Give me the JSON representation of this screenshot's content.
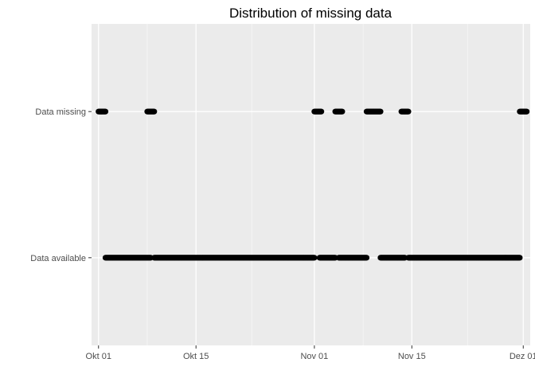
{
  "chart_data": {
    "type": "scatter",
    "title": "Distribution of missing data",
    "xlabel": "",
    "ylabel": "",
    "xlim": [
      "2017-09-30",
      "2017-12-02"
    ],
    "categories": [
      "Data available",
      "Data missing"
    ],
    "x_ticks": [
      {
        "date": "2017-10-01",
        "label": "Okt 01"
      },
      {
        "date": "2017-10-15",
        "label": "Okt 15"
      },
      {
        "date": "2017-11-01",
        "label": "Nov 01"
      },
      {
        "date": "2017-11-15",
        "label": "Nov 15"
      },
      {
        "date": "2017-12-01",
        "label": "Dez 01"
      }
    ],
    "x_minor_ticks": [
      "2017-10-08",
      "2017-10-23",
      "2017-11-08",
      "2017-11-23"
    ],
    "grid": true,
    "legend": "none",
    "series": [
      {
        "category": "Data missing",
        "ranges": [
          [
            "2017-10-01T00:00",
            "2017-10-02T00:00"
          ],
          [
            "2017-10-08T00:00",
            "2017-10-09T00:00"
          ],
          [
            "2017-11-01T00:00",
            "2017-11-02T00:00"
          ],
          [
            "2017-11-04T00:00",
            "2017-11-05T00:00"
          ],
          [
            "2017-11-08T12:00",
            "2017-11-10T12:00"
          ],
          [
            "2017-11-13T12:00",
            "2017-11-14T12:00"
          ],
          [
            "2017-11-30T12:00",
            "2017-12-01T12:00"
          ]
        ]
      },
      {
        "category": "Data available",
        "ranges": [
          [
            "2017-10-02T00:00",
            "2017-10-08T12:00"
          ],
          [
            "2017-10-09T00:00",
            "2017-11-01T00:00"
          ],
          [
            "2017-11-01T18:00",
            "2017-11-04T00:00"
          ],
          [
            "2017-11-04T12:00",
            "2017-11-08T12:00"
          ],
          [
            "2017-11-10T12:00",
            "2017-11-14T00:00"
          ],
          [
            "2017-11-14T12:00",
            "2017-11-30T12:00"
          ]
        ]
      }
    ]
  }
}
